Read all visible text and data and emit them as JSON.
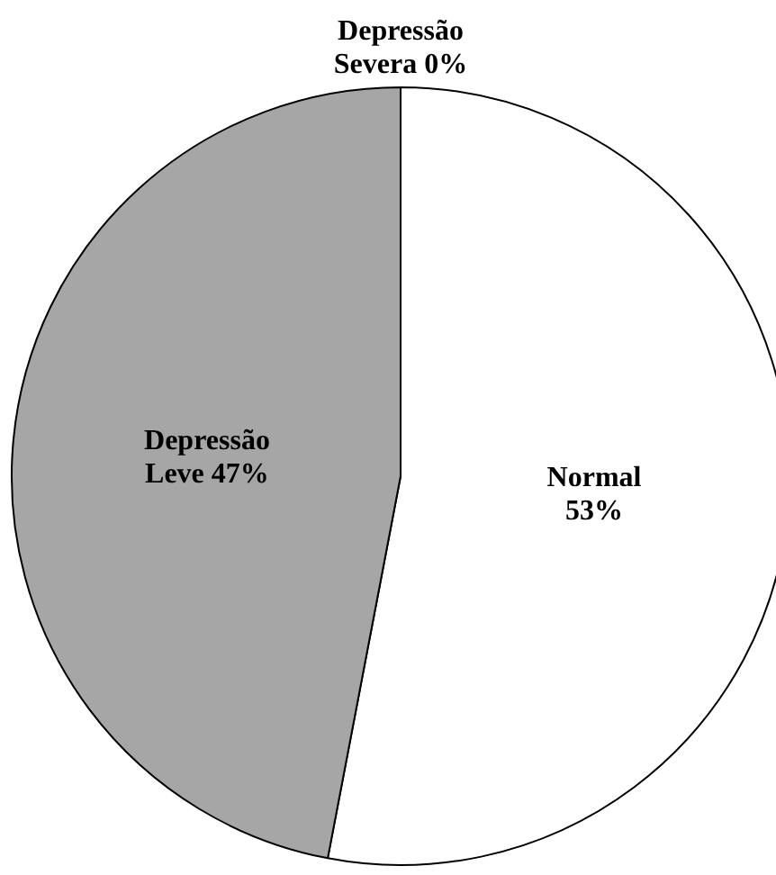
{
  "chart_data": {
    "type": "pie",
    "categories": [
      "Normal",
      "Depressão Leve",
      "Depressão Severa"
    ],
    "values": [
      53,
      47,
      0
    ],
    "colors": [
      "#ffffff",
      "#a6a6a6",
      "#ffffff"
    ],
    "value_labels": [
      "53%",
      "47%",
      "0%"
    ]
  }
}
